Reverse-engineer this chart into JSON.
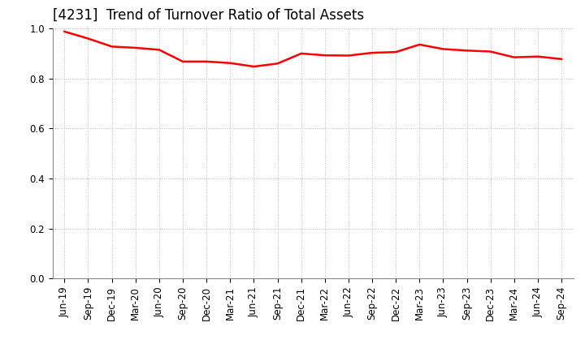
{
  "title": "[4231]  Trend of Turnover Ratio of Total Assets",
  "line_color": "#ff0000",
  "line_width": 1.8,
  "background_color": "#ffffff",
  "grid_color": "#bbbbbb",
  "ylim": [
    0.0,
    1.0
  ],
  "yticks": [
    0.0,
    0.2,
    0.4,
    0.6,
    0.8,
    1.0
  ],
  "x_labels": [
    "Jun-19",
    "Sep-19",
    "Dec-19",
    "Mar-20",
    "Jun-20",
    "Sep-20",
    "Dec-20",
    "Mar-21",
    "Jun-21",
    "Sep-21",
    "Dec-21",
    "Mar-22",
    "Jun-22",
    "Sep-22",
    "Dec-22",
    "Mar-23",
    "Jun-23",
    "Sep-23",
    "Dec-23",
    "Mar-24",
    "Jun-24",
    "Sep-24"
  ],
  "values": [
    0.988,
    0.96,
    0.928,
    0.923,
    0.915,
    0.868,
    0.868,
    0.862,
    0.848,
    0.86,
    0.9,
    0.893,
    0.892,
    0.903,
    0.906,
    0.936,
    0.918,
    0.912,
    0.908,
    0.885,
    0.888,
    0.878
  ],
  "title_fontsize": 12,
  "tick_fontsize": 8.5
}
